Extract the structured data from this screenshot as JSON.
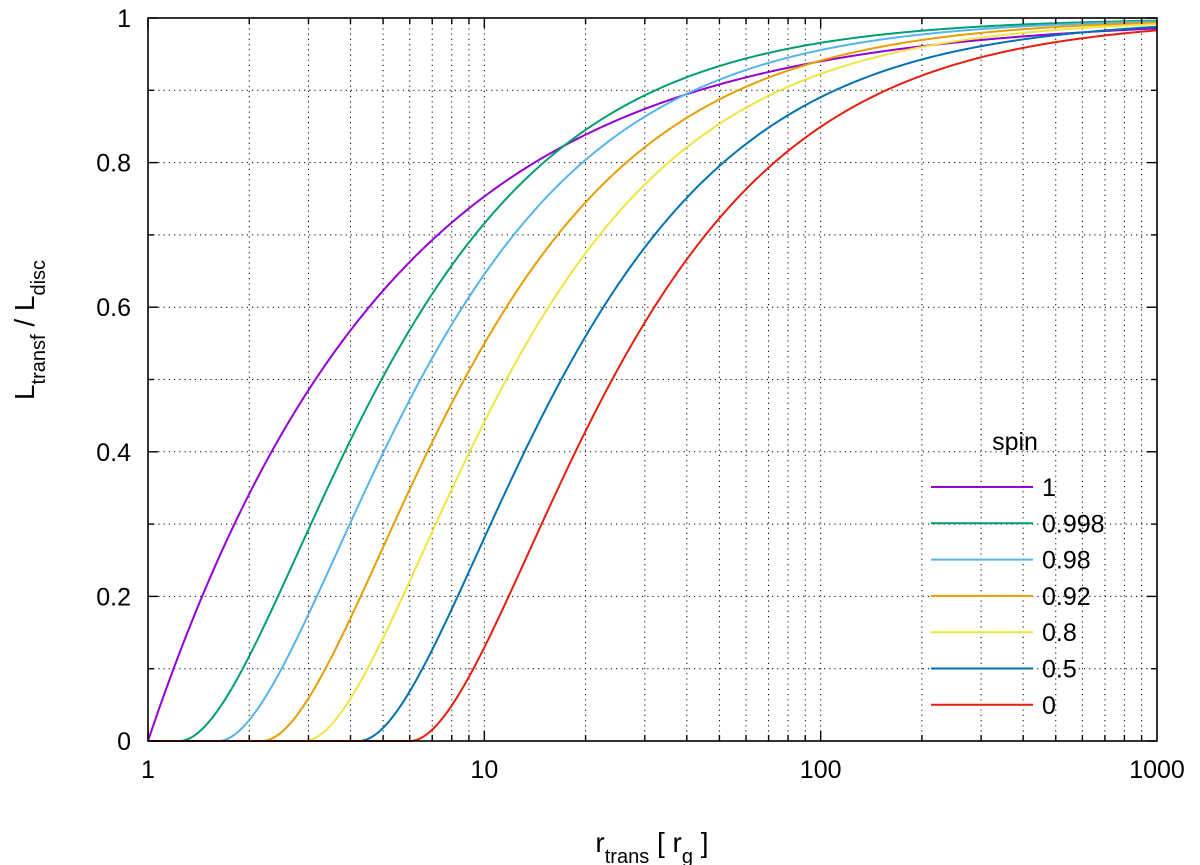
{
  "chart_data": {
    "type": "line",
    "title": "",
    "xlabel": {
      "main": "r",
      "sub": "trans",
      "mid": " [ r",
      "sub2": "g",
      "end": " ]"
    },
    "ylabel": {
      "main": "L",
      "sub": "transf",
      "mid": " / L",
      "sub2": "disc"
    },
    "xscale": "log",
    "xlim": [
      1,
      1000
    ],
    "ylim": [
      0,
      1
    ],
    "xticks": [
      {
        "value": 1,
        "label": "1"
      },
      {
        "value": 10,
        "label": "10"
      },
      {
        "value": 100,
        "label": "100"
      },
      {
        "value": 1000,
        "label": "1000"
      }
    ],
    "yticks": [
      {
        "value": 0,
        "label": "0"
      },
      {
        "value": 0.2,
        "label": "0.2"
      },
      {
        "value": 0.4,
        "label": "0.4"
      },
      {
        "value": 0.6,
        "label": "0.6"
      },
      {
        "value": 0.8,
        "label": "0.8"
      },
      {
        "value": 1,
        "label": "1"
      }
    ],
    "grid": true,
    "legend": {
      "title": "spin",
      "position": "bottom-right"
    },
    "series": [
      {
        "name": "1",
        "color": "#9400d3",
        "r_in": 1.0
      },
      {
        "name": "0.998",
        "color": "#009e73",
        "r_in": 1.237
      },
      {
        "name": "0.98",
        "color": "#56b4e9",
        "r_in": 1.614
      },
      {
        "name": "0.92",
        "color": "#e69f00",
        "r_in": 2.179
      },
      {
        "name": "0.8",
        "color": "#f0e442",
        "r_in": 2.907
      },
      {
        "name": "0.5",
        "color": "#0072b2",
        "r_in": 4.233
      },
      {
        "name": "0",
        "color": "#e51e10",
        "r_in": 6.0
      }
    ]
  }
}
